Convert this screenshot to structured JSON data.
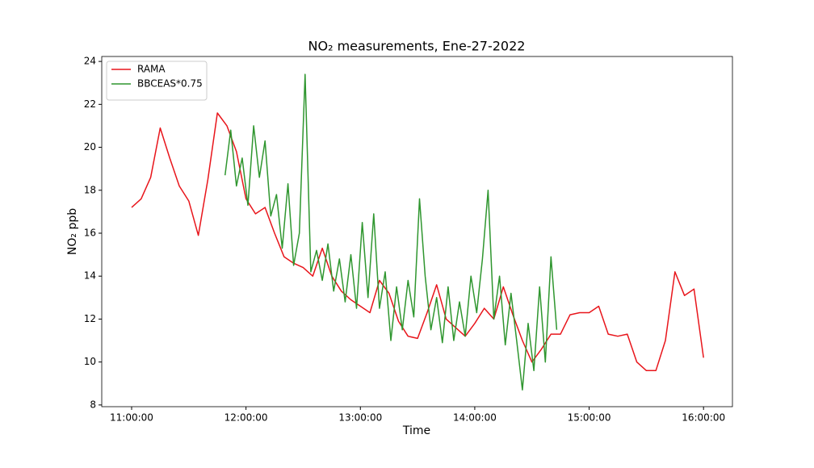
{
  "chart_data": {
    "type": "line",
    "title": "NO₂ measurements, Ene-27-2022",
    "xlabel": "Time",
    "ylabel": "NO₂ ppb",
    "xlim": [
      "10:44:20",
      "16:15:10"
    ],
    "xticks": [
      "11:00:00",
      "12:00:00",
      "13:00:00",
      "14:00:00",
      "15:00:00",
      "16:00:00"
    ],
    "ylim": [
      7.92,
      24.23
    ],
    "yticks": [
      8,
      10,
      12,
      14,
      16,
      18,
      20,
      22,
      24
    ],
    "legend": "upper left",
    "series": [
      {
        "name": "RAMA",
        "color": "#e8151b",
        "x": [
          "11:00:00",
          "11:05:00",
          "11:10:00",
          "11:15:00",
          "11:20:00",
          "11:25:00",
          "11:30:00",
          "11:35:00",
          "11:40:00",
          "11:45:00",
          "11:50:00",
          "11:55:00",
          "12:00:00",
          "12:05:00",
          "12:10:00",
          "12:15:00",
          "12:20:00",
          "12:25:00",
          "12:30:00",
          "12:35:00",
          "12:40:00",
          "12:45:00",
          "12:50:00",
          "12:55:00",
          "13:00:00",
          "13:05:00",
          "13:10:00",
          "13:15:00",
          "13:20:00",
          "13:25:00",
          "13:30:00",
          "13:35:00",
          "13:40:00",
          "13:45:00",
          "13:50:00",
          "13:55:00",
          "14:00:00",
          "14:05:00",
          "14:10:00",
          "14:15:00",
          "14:20:00",
          "14:25:00",
          "14:30:00",
          "14:35:00",
          "14:40:00",
          "14:45:00",
          "14:50:00",
          "14:55:00",
          "15:00:00",
          "15:05:00",
          "15:10:00",
          "15:15:00",
          "15:20:00",
          "15:25:00",
          "15:30:00",
          "15:35:00",
          "15:40:00",
          "15:45:00",
          "15:50:00",
          "15:55:00",
          "16:00:00"
        ],
        "values": [
          17.2,
          17.6,
          18.6,
          20.9,
          19.5,
          18.2,
          17.5,
          15.9,
          18.5,
          21.6,
          21.0,
          19.8,
          17.6,
          16.9,
          17.2,
          16.0,
          14.9,
          14.6,
          14.4,
          14.0,
          15.3,
          14.0,
          13.3,
          12.9,
          12.6,
          12.3,
          13.8,
          13.2,
          11.9,
          11.2,
          11.1,
          12.3,
          13.6,
          12.0,
          11.6,
          11.2,
          11.8,
          12.5,
          12.0,
          13.5,
          12.2,
          11.0,
          10.0,
          10.6,
          11.3,
          11.3,
          12.2,
          12.3,
          12.3,
          12.6,
          11.3,
          11.2,
          11.3,
          10.0,
          9.6,
          9.6,
          11.0,
          14.2,
          13.1,
          13.4,
          10.2
        ]
      },
      {
        "name": "BBCEAS*0.75",
        "color": "#2f962f",
        "x": [
          "11:49:00",
          "11:52:00",
          "11:55:00",
          "11:58:00",
          "12:01:00",
          "12:04:00",
          "12:07:00",
          "12:10:00",
          "12:13:00",
          "12:16:00",
          "12:19:00",
          "12:22:00",
          "12:25:00",
          "12:28:00",
          "12:31:00",
          "12:34:00",
          "12:37:00",
          "12:40:00",
          "12:43:00",
          "12:46:00",
          "12:49:00",
          "12:52:00",
          "12:55:00",
          "12:58:00",
          "13:01:00",
          "13:04:00",
          "13:07:00",
          "13:10:00",
          "13:13:00",
          "13:16:00",
          "13:19:00",
          "13:22:00",
          "13:25:00",
          "13:28:00",
          "13:31:00",
          "13:34:00",
          "13:37:00",
          "13:40:00",
          "13:43:00",
          "13:46:00",
          "13:49:00",
          "13:52:00",
          "13:55:00",
          "13:58:00",
          "14:01:00",
          "14:04:00",
          "14:07:00",
          "14:10:00",
          "14:13:00",
          "14:16:00",
          "14:19:00",
          "14:22:00",
          "14:25:00",
          "14:28:00",
          "14:31:00",
          "14:34:00",
          "14:37:00",
          "14:40:00",
          "14:43:00"
        ],
        "values": [
          18.7,
          20.8,
          18.2,
          19.5,
          17.3,
          21.0,
          18.6,
          20.3,
          16.8,
          17.8,
          15.3,
          18.3,
          14.5,
          16.0,
          23.4,
          14.2,
          15.2,
          13.8,
          15.5,
          13.3,
          14.8,
          12.8,
          15.0,
          12.5,
          16.5,
          13.0,
          16.9,
          12.5,
          14.2,
          11.0,
          13.5,
          11.5,
          13.8,
          12.1,
          17.6,
          14.0,
          11.5,
          13.0,
          10.9,
          13.5,
          11.0,
          12.8,
          11.2,
          14.0,
          12.3,
          14.8,
          18.0,
          12.0,
          14.0,
          10.8,
          13.2,
          11.0,
          8.7,
          11.8,
          9.6,
          13.5,
          10.0,
          14.9,
          11.5
        ]
      }
    ]
  }
}
